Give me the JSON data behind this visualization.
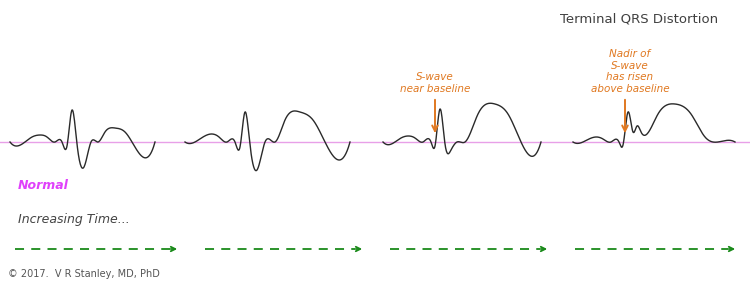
{
  "title": "Terminal QRS Distortion",
  "title_fontsize": 9.5,
  "background_color": "#ffffff",
  "baseline_color": "#e8a0e8",
  "ecg_color": "#2a2a2a",
  "normal_label": "Normal",
  "normal_label_color": "#e040fb",
  "annotation1": "S-wave\nnear baseline",
  "annotation1_color": "#e07820",
  "annotation2": "Nadir of\nS-wave\nhas risen\nabove baseline",
  "annotation2_color": "#e07820",
  "arrow_color": "#e07820",
  "time_label": "Increasing Time...",
  "time_label_fontsize": 9,
  "dashed_arrow_color": "#1a8a1a",
  "copyright": "© 2017.  V R Stanley, MD, PhD",
  "copyright_fontsize": 7
}
